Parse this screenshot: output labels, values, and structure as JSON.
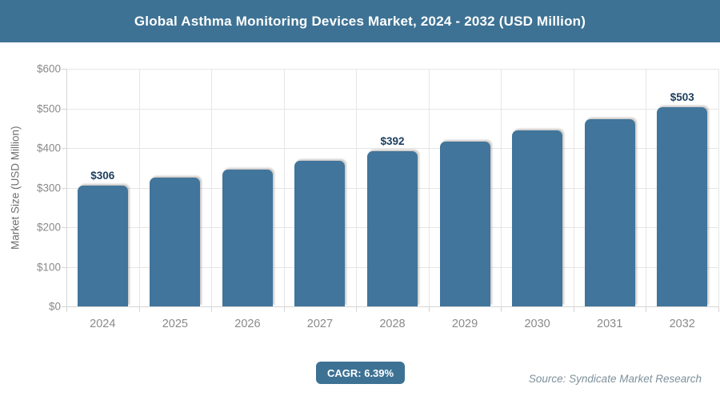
{
  "header": {
    "title": "Global Asthma Monitoring Devices Market, 2024 - 2032 (USD Million)"
  },
  "chart_data": {
    "type": "bar",
    "title": "Global Asthma Monitoring Devices Market, 2024 - 2032 (USD Million)",
    "categories": [
      "2024",
      "2025",
      "2026",
      "2027",
      "2028",
      "2029",
      "2030",
      "2031",
      "2032"
    ],
    "values": [
      306,
      326,
      346,
      368,
      392,
      417,
      444,
      472,
      503
    ],
    "point_labels": [
      "$306",
      null,
      null,
      null,
      "$392",
      null,
      null,
      null,
      "$503"
    ],
    "xlabel": "",
    "ylabel": "Market Size (USD Million)",
    "ylim": [
      0,
      600
    ],
    "ytick_values": [
      0,
      100,
      200,
      300,
      400,
      500,
      600
    ],
    "ytick_labels": [
      "$0",
      "$100",
      "$200",
      "$300",
      "$400",
      "$500",
      "$600"
    ],
    "grid": true,
    "legend": "none"
  },
  "footer": {
    "cagr_label": "CAGR: 6.39%",
    "source": "Source: Syndicate Market Research"
  },
  "colors": {
    "header_bg": "#3d7294",
    "bar_fill": "#41759b",
    "badge_bg": "#3d7294",
    "grid_line": "#e6e6e6",
    "axis_line": "#d6d6d6",
    "axis_text": "#8a8a8a",
    "ylabel_text": "#6f6f6f",
    "bar_label_text": "#1c3d5e",
    "source_text": "#7e909b"
  }
}
